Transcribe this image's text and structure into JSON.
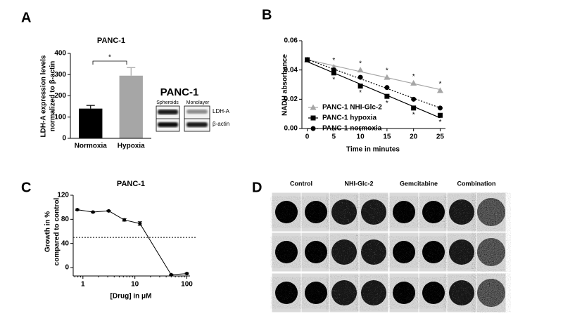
{
  "panel_letters": [
    "A",
    "B",
    "C",
    "D"
  ],
  "chart_data": [
    {
      "type": "bar",
      "title": "PANC-1",
      "y_label": [
        "LDH-A expression levels",
        "normalized to β-actin"
      ],
      "categories": [
        "Normoxia",
        "Hypoxia"
      ],
      "values": [
        140,
        295
      ],
      "errors": [
        15,
        38
      ],
      "colors": [
        "#000000",
        "#a6a6a6"
      ],
      "ylim": [
        0,
        400
      ],
      "yticks": [
        0,
        100,
        200,
        300,
        400
      ],
      "annotation": "*"
    },
    {
      "type": "scatter",
      "x_label": "Time in minutes",
      "y_label": "NADH absorbance",
      "x": [
        0,
        5,
        10,
        15,
        20,
        25
      ],
      "xlim": [
        -1,
        26
      ],
      "xticks": [
        0,
        5,
        10,
        15,
        20,
        25
      ],
      "ylim": [
        0,
        0.06
      ],
      "yticks": [
        {
          "value": 0,
          "label": "0.00"
        },
        {
          "value": 0.02,
          "label": "0.02"
        },
        {
          "value": 0.04,
          "label": "0.04"
        },
        {
          "value": 0.06,
          "label": "0.06"
        }
      ],
      "series": [
        {
          "name": "PANC-1 NHI-Glc-2",
          "color": "#a6a6a6",
          "marker": "triangle",
          "linestyle": "solid",
          "annotation": "*",
          "values": [
            0.047,
            0.042,
            0.04,
            0.035,
            0.031,
            0.026
          ]
        },
        {
          "name": "PANC-1 hypoxia",
          "color": "#000000",
          "marker": "square",
          "linestyle": "solid",
          "annotation": "*",
          "values": [
            0.047,
            0.038,
            0.029,
            0.022,
            0.014,
            0.009
          ]
        },
        {
          "name": "PANC-1 normoxia",
          "color": "#000000",
          "marker": "circle",
          "linestyle": "dotted",
          "values": [
            0.047,
            0.04,
            0.035,
            0.028,
            0.02,
            0.014
          ]
        }
      ]
    },
    {
      "type": "line",
      "title": "PANC-1",
      "x_label": "[Drug] in μM",
      "y_label": [
        "Growth in %",
        "compared to control"
      ],
      "xscale": "log",
      "x": [
        0.78,
        1.56,
        3.13,
        6.25,
        12.5,
        50,
        100
      ],
      "values": [
        96,
        92,
        94,
        79,
        73,
        -12,
        -10
      ],
      "errors": [
        1,
        1,
        1,
        2,
        3,
        1,
        1
      ],
      "color": "#000000",
      "xlim": [
        0.65,
        115
      ],
      "xticks": [
        1,
        10,
        100
      ],
      "ylim": [
        -14,
        120
      ],
      "yticks": [
        0,
        40,
        80,
        120
      ],
      "hline": 50
    }
  ],
  "blot": {
    "title": "PANC-1",
    "columns": [
      "Spheroids",
      "Monolayer"
    ],
    "rows": [
      "LDH-A",
      "β-actin"
    ]
  },
  "spheroids": {
    "columns": [
      "Control",
      "NHI-Glc-2",
      "Gemcitabine",
      "Combination"
    ]
  }
}
